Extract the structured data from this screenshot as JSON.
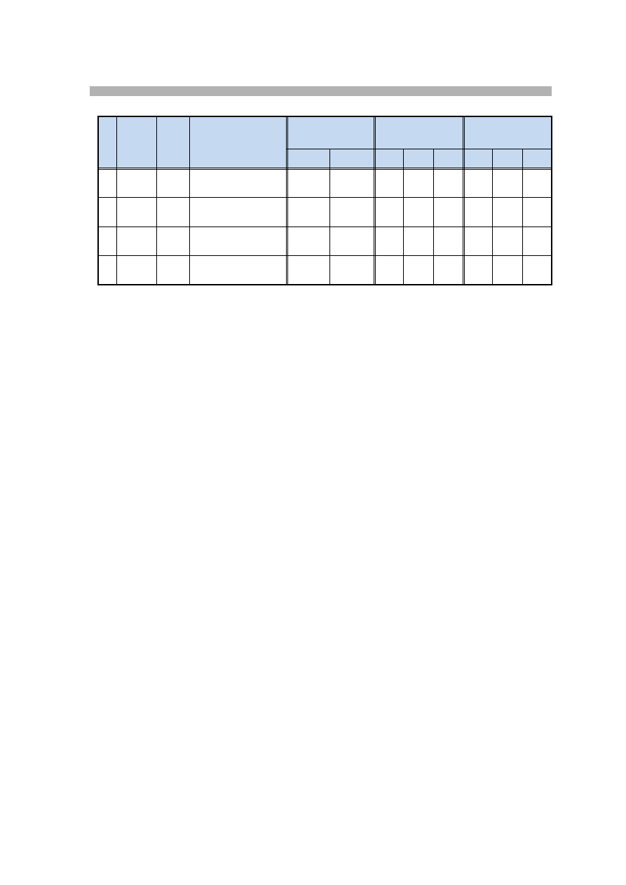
{
  "colors": {
    "section_bar": "#b2b2b2",
    "header_fill": "#c5d9f1",
    "border": "#000000"
  },
  "table": {
    "header_groups": [
      "",
      "",
      "",
      "",
      "",
      "",
      ""
    ],
    "subheaders": [
      "",
      "",
      "",
      "",
      "",
      "",
      "",
      ""
    ],
    "rows": [
      [
        "",
        "",
        "",
        "",
        "",
        "",
        "",
        "",
        "",
        "",
        "",
        ""
      ],
      [
        "",
        "",
        "",
        "",
        "",
        "",
        "",
        "",
        "",
        "",
        "",
        ""
      ],
      [
        "",
        "",
        "",
        "",
        "",
        "",
        "",
        "",
        "",
        "",
        "",
        ""
      ],
      [
        "",
        "",
        "",
        "",
        "",
        "",
        "",
        "",
        "",
        "",
        "",
        ""
      ]
    ]
  }
}
